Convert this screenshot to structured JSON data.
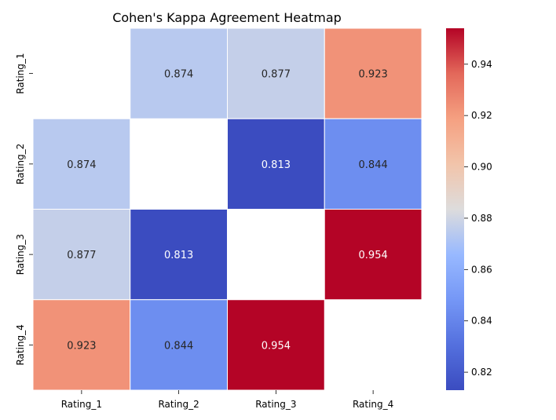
{
  "chart_data": {
    "type": "heatmap",
    "title": "Cohen's Kappa Agreement Heatmap",
    "x_categories": [
      "Rating_1",
      "Rating_2",
      "Rating_3",
      "Rating_4"
    ],
    "y_categories": [
      "Rating_1",
      "Rating_2",
      "Rating_3",
      "Rating_4"
    ],
    "values": [
      [
        null,
        0.874,
        0.877,
        0.923
      ],
      [
        0.874,
        null,
        0.813,
        0.844
      ],
      [
        0.877,
        0.813,
        null,
        0.954
      ],
      [
        0.923,
        0.844,
        0.954,
        null
      ]
    ],
    "labels": [
      [
        "",
        "0.874",
        "0.877",
        "0.923"
      ],
      [
        "0.874",
        "",
        "0.813",
        "0.844"
      ],
      [
        "0.877",
        "0.813",
        "",
        "0.954"
      ],
      [
        "0.923",
        "0.844",
        "0.954",
        ""
      ]
    ],
    "colormap": "coolwarm",
    "vmin": 0.813,
    "vmax": 0.954,
    "colorbar_ticks": [
      "0.82",
      "0.84",
      "0.86",
      "0.88",
      "0.90",
      "0.92",
      "0.94"
    ],
    "colorbar_tick_values": [
      0.82,
      0.84,
      0.86,
      0.88,
      0.9,
      0.92,
      0.94
    ],
    "grid": false
  }
}
